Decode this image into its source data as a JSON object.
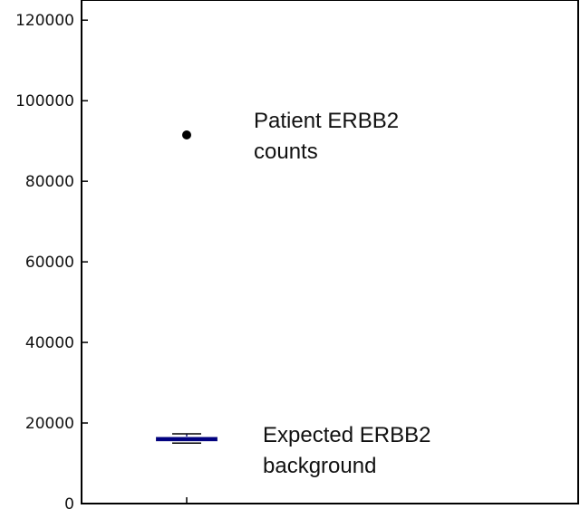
{
  "chart_data": {
    "type": "scatter",
    "title": "",
    "xlabel": "",
    "ylabel": "",
    "ylim": [
      0,
      125000
    ],
    "yticks": [
      0,
      20000,
      40000,
      60000,
      80000,
      100000,
      120000
    ],
    "ytick_labels": [
      "0",
      "20000",
      "40000",
      "60000",
      "80000",
      "100000",
      "120000"
    ],
    "grid": false,
    "legend": "none",
    "points": [
      {
        "label": "Patient ERBB2 counts",
        "x": 1,
        "y": 91500,
        "color": "#000000"
      }
    ],
    "boxplot": {
      "label": "Expected ERBB2 background",
      "x": 1,
      "whisker_low": 15000,
      "q1": 15700,
      "median": 16000,
      "q3": 16300,
      "whisker_high": 17300,
      "box_color": "#1a1a80",
      "median_color": "#000080"
    },
    "annotations": [
      {
        "id": "patient",
        "lines": [
          "Patient ERBB2",
          "counts"
        ],
        "y": 91500
      },
      {
        "id": "background",
        "lines": [
          "Expected ERBB2",
          "background"
        ],
        "y": 16000
      }
    ]
  }
}
